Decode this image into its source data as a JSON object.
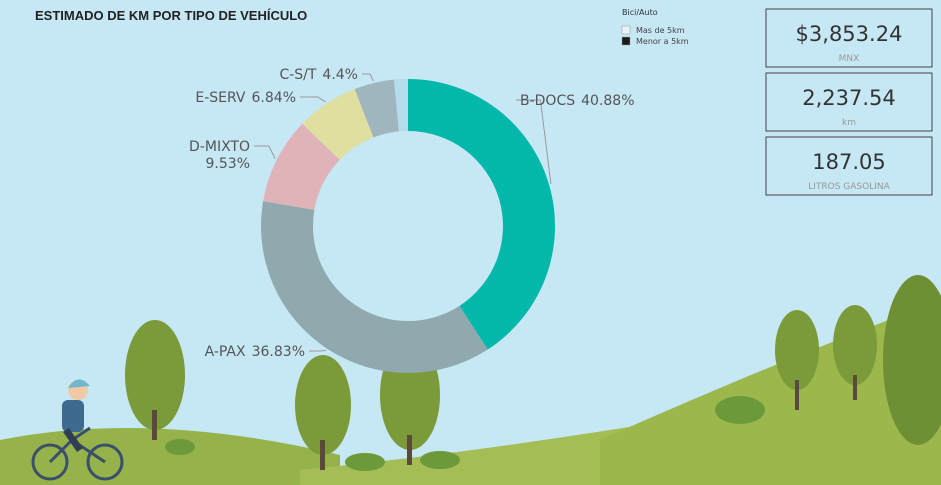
{
  "chart_data": {
    "type": "donut",
    "title": "ESTIMADO DE KM POR TIPO DE VEHÍCULO",
    "categories": [
      "B-DOCS",
      "A-PAX",
      "D-MIXTO",
      "E-SERV",
      "C-S/T",
      null
    ],
    "values": [
      40.88,
      36.83,
      9.53,
      6.84,
      4.4,
      1.52
    ],
    "value_labels": [
      "40.88%",
      "36.83%",
      "9.53%",
      "6.84%",
      "4.4%",
      null
    ],
    "colors": [
      "#01b8aa",
      "#8fa9ae",
      "#dfb3b8",
      "#dfe0a0",
      "#9fb6be",
      "#b5dceb"
    ]
  },
  "legend": {
    "title": "Bici/Auto",
    "items": [
      {
        "name": "Mas de 5km",
        "color": "#e8f1f5"
      },
      {
        "name": "Menor a 5km",
        "color": "#1a1a1a"
      }
    ]
  },
  "cards": [
    {
      "value": "$3,853.24",
      "label": "MNX"
    },
    {
      "value": "2,237.54",
      "label": "km"
    },
    {
      "value": "187.05",
      "label": "LITROS GASOLINA"
    }
  ]
}
